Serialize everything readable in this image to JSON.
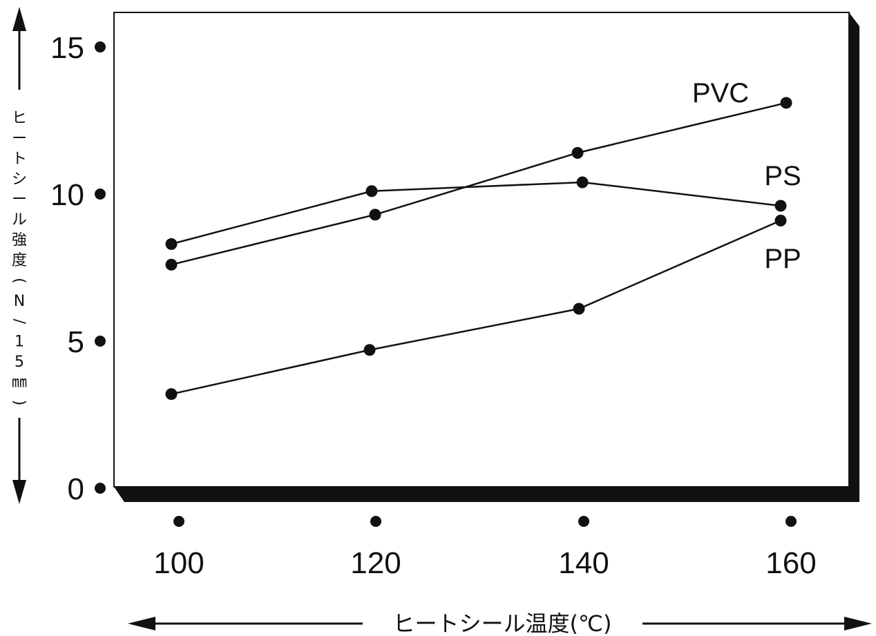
{
  "chart_data": {
    "type": "line",
    "xlabel": "ヒートシール温度(℃)",
    "ylabel": "ヒートシール強度(N/15㎜)",
    "x": [
      100,
      120,
      140,
      160
    ],
    "xticks": [
      "100",
      "120",
      "140",
      "160"
    ],
    "yticks": [
      "0",
      "5",
      "10",
      "15"
    ],
    "ylim": [
      0,
      15
    ],
    "series": [
      {
        "name": "PVC",
        "values": [
          7.6,
          9.3,
          11.4,
          13.1
        ]
      },
      {
        "name": "PS",
        "values": [
          8.3,
          10.1,
          10.4,
          9.6
        ]
      },
      {
        "name": "PP",
        "values": [
          3.2,
          4.7,
          6.1,
          9.1
        ]
      }
    ],
    "grid": false,
    "legend": "labels at line ends (right)",
    "colors": {
      "line": "#111111",
      "frame": "#111111",
      "background": "#ffffff"
    }
  }
}
